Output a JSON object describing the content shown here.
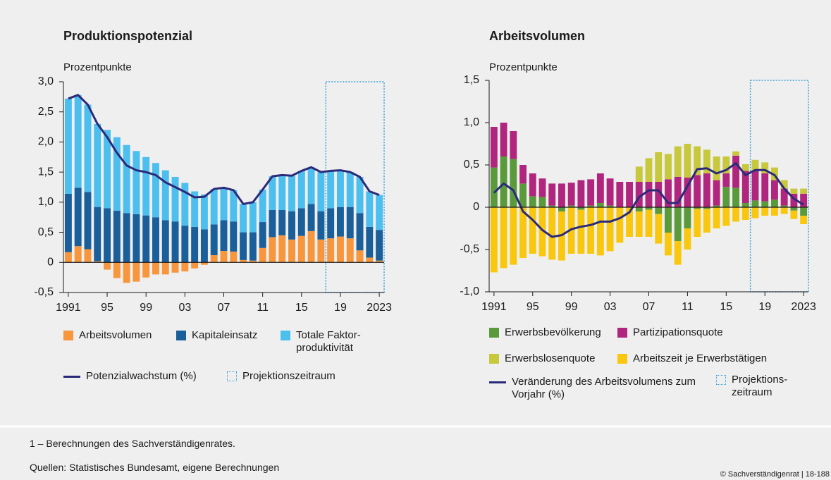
{
  "chart_data": [
    {
      "type": "bar",
      "stacked": true,
      "title": "Produktionspotenzial",
      "y_label": "Prozentpunkte",
      "x": [
        1991,
        1992,
        1993,
        1994,
        1995,
        1996,
        1997,
        1998,
        1999,
        2000,
        2001,
        2002,
        2003,
        2004,
        2005,
        2006,
        2007,
        2008,
        2009,
        2010,
        2011,
        2012,
        2013,
        2014,
        2015,
        2016,
        2017,
        2018,
        2019,
        2020,
        2021,
        2022,
        2023
      ],
      "xlim": [
        1990.5,
        2023.5
      ],
      "xticks": [
        1991,
        {
          "value": 1995,
          "label": "95"
        },
        {
          "value": 1999,
          "label": "99"
        },
        {
          "value": 2003,
          "label": "03"
        },
        {
          "value": 2007,
          "label": "07"
        },
        {
          "value": 2011,
          "label": "11"
        },
        {
          "value": 2015,
          "label": "15"
        },
        {
          "value": 2019,
          "label": "19"
        },
        2023
      ],
      "ylim": [
        -0.5,
        3.0
      ],
      "yticks": [
        {
          "value": -0.5,
          "label": "-0,5"
        },
        0,
        {
          "value": 0.5,
          "label": "0,5"
        },
        {
          "value": 1.0,
          "label": "1,0"
        },
        {
          "value": 1.5,
          "label": "1,5"
        },
        {
          "value": 2.0,
          "label": "2,0"
        },
        {
          "value": 2.5,
          "label": "2,5"
        },
        {
          "value": 3.0,
          "label": "3,0"
        }
      ],
      "series": [
        {
          "name": "Arbeitsvolumen",
          "type": "bar",
          "color": "#f7963c",
          "values": [
            0.17,
            0.27,
            0.22,
            0.02,
            -0.12,
            -0.26,
            -0.34,
            -0.32,
            -0.25,
            -0.2,
            -0.2,
            -0.17,
            -0.15,
            -0.1,
            -0.04,
            0.12,
            0.19,
            0.18,
            0.04,
            0.03,
            0.24,
            0.42,
            0.45,
            0.38,
            0.44,
            0.52,
            0.38,
            0.4,
            0.43,
            0.4,
            0.2,
            0.08,
            0.03
          ]
        },
        {
          "name": "Kapitaleinsatz",
          "type": "bar",
          "color": "#1a5e9a",
          "values": [
            0.97,
            0.97,
            0.95,
            0.9,
            0.9,
            0.86,
            0.82,
            0.8,
            0.78,
            0.75,
            0.7,
            0.68,
            0.61,
            0.59,
            0.55,
            0.51,
            0.51,
            0.5,
            0.46,
            0.47,
            0.43,
            0.45,
            0.42,
            0.47,
            0.46,
            0.45,
            0.47,
            0.5,
            0.49,
            0.52,
            0.62,
            0.51,
            0.51
          ]
        },
        {
          "name": "Totale Faktor-produktivität",
          "type": "bar",
          "color": "#4dbfee",
          "values": [
            1.58,
            1.54,
            1.45,
            1.38,
            1.3,
            1.22,
            1.13,
            1.05,
            0.97,
            0.9,
            0.83,
            0.74,
            0.71,
            0.59,
            0.58,
            0.59,
            0.54,
            0.52,
            0.47,
            0.5,
            0.54,
            0.56,
            0.58,
            0.59,
            0.62,
            0.61,
            0.65,
            0.62,
            0.61,
            0.58,
            0.6,
            0.59,
            0.58
          ]
        },
        {
          "name": "Potenzialwachstum (%)",
          "type": "line",
          "color": "#2b2a7a",
          "values": [
            2.72,
            2.78,
            2.62,
            2.3,
            2.08,
            1.82,
            1.61,
            1.53,
            1.5,
            1.45,
            1.33,
            1.25,
            1.17,
            1.08,
            1.09,
            1.22,
            1.24,
            1.2,
            0.97,
            1.0,
            1.21,
            1.43,
            1.45,
            1.44,
            1.52,
            1.58,
            1.5,
            1.52,
            1.53,
            1.5,
            1.42,
            1.18,
            1.12
          ]
        }
      ],
      "projection": {
        "name": "Projektionszeitraum",
        "start": 2017.5,
        "color": "#3ba0d8"
      }
    },
    {
      "type": "bar",
      "stacked": true,
      "title": "Arbeitsvolumen",
      "y_label": "Prozentpunkte",
      "x": [
        1991,
        1992,
        1993,
        1994,
        1995,
        1996,
        1997,
        1998,
        1999,
        2000,
        2001,
        2002,
        2003,
        2004,
        2005,
        2006,
        2007,
        2008,
        2009,
        2010,
        2011,
        2012,
        2013,
        2014,
        2015,
        2016,
        2017,
        2018,
        2019,
        2020,
        2021,
        2022,
        2023
      ],
      "xlim": [
        1990.5,
        2023.5
      ],
      "xticks": [
        1991,
        {
          "value": 1995,
          "label": "95"
        },
        {
          "value": 1999,
          "label": "99"
        },
        {
          "value": 2003,
          "label": "03"
        },
        {
          "value": 2007,
          "label": "07"
        },
        {
          "value": 2011,
          "label": "11"
        },
        {
          "value": 2015,
          "label": "15"
        },
        {
          "value": 2019,
          "label": "19"
        },
        2023
      ],
      "ylim": [
        -1.0,
        1.5
      ],
      "yticks": [
        {
          "value": -1.0,
          "label": "-1,0"
        },
        {
          "value": -0.5,
          "label": "-0,5"
        },
        0,
        {
          "value": 0.5,
          "label": "0,5"
        },
        {
          "value": 1.0,
          "label": "1,0"
        },
        {
          "value": 1.5,
          "label": "1,5"
        }
      ],
      "series": [
        {
          "name": "Erwerbsbevölkerung",
          "type": "bar",
          "color": "#5a9a3a",
          "values": [
            0.47,
            0.6,
            0.57,
            0.28,
            0.13,
            0.12,
            0.02,
            -0.05,
            0.02,
            -0.03,
            0.02,
            0.05,
            0.02,
            0.0,
            0.0,
            -0.05,
            -0.03,
            -0.08,
            -0.3,
            -0.4,
            -0.25,
            -0.02,
            -0.02,
            0.02,
            0.24,
            0.23,
            0.05,
            0.08,
            0.07,
            0.09,
            0.02,
            -0.04,
            -0.1
          ]
        },
        {
          "name": "Partizipationsquote",
          "type": "bar",
          "color": "#b0267e",
          "values": [
            0.48,
            0.4,
            0.33,
            0.22,
            0.27,
            0.22,
            0.26,
            0.28,
            0.27,
            0.32,
            0.31,
            0.35,
            0.32,
            0.3,
            0.3,
            0.3,
            0.3,
            0.3,
            0.33,
            0.36,
            0.35,
            0.38,
            0.4,
            0.3,
            0.16,
            0.38,
            0.38,
            0.35,
            0.33,
            0.23,
            0.2,
            0.16,
            0.16
          ]
        },
        {
          "name": "Erwerbslosenquote",
          "type": "bar",
          "color": "#c8c83c",
          "values": [
            0,
            0,
            0,
            0,
            0,
            0,
            0,
            0,
            0,
            0,
            0,
            0,
            0,
            0,
            0,
            0.18,
            0.28,
            0.35,
            0.3,
            0.36,
            0.4,
            0.34,
            0.28,
            0.28,
            0.2,
            0.05,
            0.08,
            0.13,
            0.13,
            0.15,
            0.1,
            0.06,
            0.06
          ]
        },
        {
          "name": "Arbeitszeit je Erwerbstätigen",
          "type": "bar",
          "color": "#f9c80e",
          "values": [
            -0.77,
            -0.72,
            -0.68,
            -0.6,
            -0.55,
            -0.58,
            -0.62,
            -0.58,
            -0.55,
            -0.52,
            -0.55,
            -0.57,
            -0.52,
            -0.42,
            -0.35,
            -0.3,
            -0.32,
            -0.35,
            -0.27,
            -0.28,
            -0.25,
            -0.33,
            -0.28,
            -0.25,
            -0.22,
            -0.17,
            -0.15,
            -0.13,
            -0.1,
            -0.1,
            -0.08,
            -0.1,
            -0.1
          ]
        },
        {
          "name": "Veränderung des Arbeitsvolumens zum Vorjahr (%)",
          "type": "line",
          "color": "#2b2a7a",
          "values": [
            0.17,
            0.28,
            0.2,
            -0.05,
            -0.15,
            -0.27,
            -0.35,
            -0.33,
            -0.26,
            -0.23,
            -0.21,
            -0.17,
            -0.17,
            -0.13,
            -0.06,
            0.12,
            0.2,
            0.2,
            0.05,
            0.05,
            0.25,
            0.45,
            0.46,
            0.4,
            0.44,
            0.52,
            0.38,
            0.44,
            0.44,
            0.38,
            0.22,
            0.1,
            0.03
          ]
        }
      ],
      "projection": {
        "name": "Projektions-zeitraum",
        "start": 2017.5,
        "color": "#3ba0d8"
      }
    }
  ],
  "footer": {
    "note": "1 – Berechnungen des Sachverständigenrates.",
    "source": "Quellen: Statistisches Bundesamt, eigene Berechnungen",
    "copyright": "© Sachverständigenrat | 18-188"
  }
}
